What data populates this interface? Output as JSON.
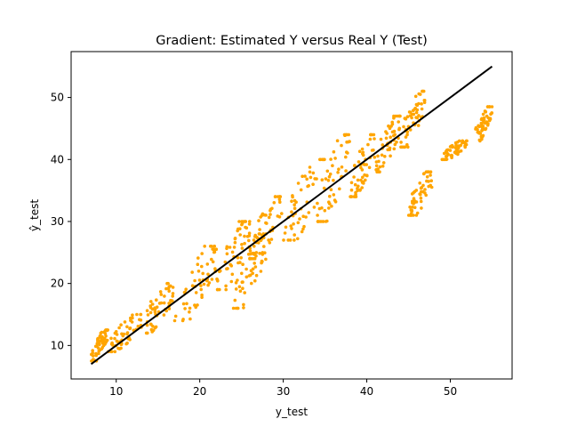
{
  "chart_data": {
    "type": "scatter",
    "title": "Gradient: Estimated Y versus Real Y (Test)",
    "xlabel": "y_test",
    "ylabel": "ŷ_test",
    "xlim": [
      4.6,
      57.4
    ],
    "ylim": [
      4.6,
      57.4
    ],
    "xticks": [
      10,
      20,
      30,
      40,
      50
    ],
    "yticks": [
      10,
      20,
      30,
      40,
      50
    ],
    "grid": false,
    "legend": "none",
    "colors": {
      "points": "#FFA500",
      "line": "#000000"
    },
    "reference_line": {
      "x": [
        7,
        55
      ],
      "y": [
        7,
        55
      ]
    },
    "series": [
      {
        "type": "scatter",
        "clusters": [
          {
            "x": [
              7,
              9
            ],
            "y": [
              7.5,
              12.5
            ]
          },
          {
            "x": [
              9,
              13
            ],
            "y": [
              9,
              15
            ]
          },
          {
            "x": [
              13,
              17
            ],
            "y": [
              12,
              20
            ]
          },
          {
            "x": [
              17,
              22
            ],
            "y": [
              14,
              26
            ]
          },
          {
            "x": [
              22,
              26
            ],
            "y": [
              19,
              30
            ]
          },
          {
            "x": [
              24,
              28
            ],
            "y": [
              16,
              28
            ]
          },
          {
            "x": [
              26,
              30
            ],
            "y": [
              24,
              34
            ]
          },
          {
            "x": [
              30,
              35
            ],
            "y": [
              27,
              40
            ]
          },
          {
            "x": [
              34,
              38
            ],
            "y": [
              30,
              44
            ]
          },
          {
            "x": [
              38,
              41
            ],
            "y": [
              34,
              44
            ]
          },
          {
            "x": [
              41,
              44
            ],
            "y": [
              38,
              47
            ]
          },
          {
            "x": [
              44,
              47
            ],
            "y": [
              42,
              51
            ]
          },
          {
            "x": [
              45,
              48
            ],
            "y": [
              31,
              38
            ]
          },
          {
            "x": [
              49,
              52
            ],
            "y": [
              40,
              43
            ]
          },
          {
            "x": [
              53,
              55
            ],
            "y": [
              43,
              48.5
            ]
          }
        ]
      }
    ]
  }
}
